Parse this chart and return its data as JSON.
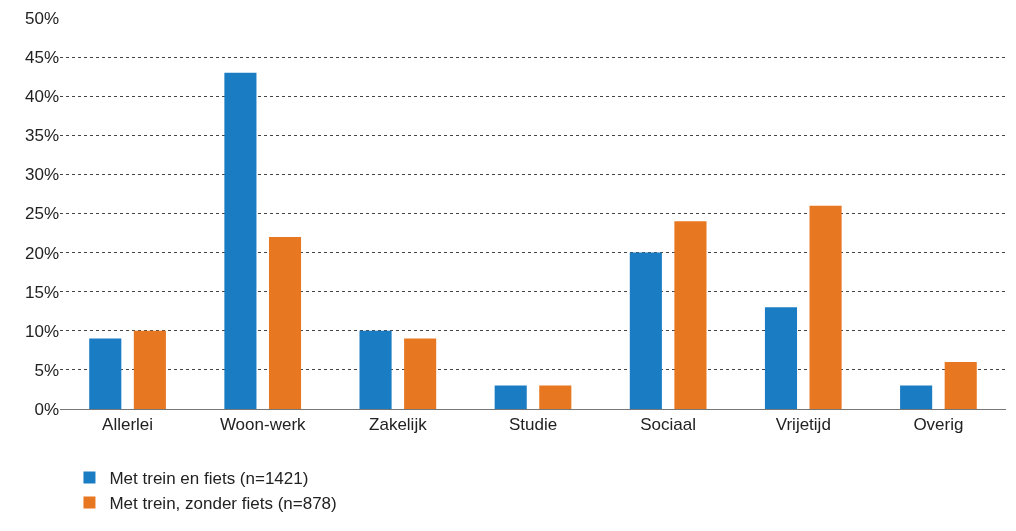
{
  "chart_data": {
    "type": "bar",
    "categories": [
      "Allerlei",
      "Woon-werk",
      "Zakelijk",
      "Studie",
      "Sociaal",
      "Vrijetijd",
      "Overig"
    ],
    "series": [
      {
        "name": "Met trein en fiets (n=1421)",
        "color": "#1a7dc4",
        "values": [
          9,
          43,
          10,
          3,
          20,
          13,
          3
        ]
      },
      {
        "name": "Met trein, zonder fiets (n=878)",
        "color": "#e87722",
        "values": [
          10,
          22,
          9,
          3,
          24,
          26,
          6
        ]
      }
    ],
    "ylim": [
      0,
      50
    ],
    "yticks": [
      {
        "value": 0,
        "label": "0%"
      },
      {
        "value": 5,
        "label": "5%"
      },
      {
        "value": 10,
        "label": "10%"
      },
      {
        "value": 15,
        "label": "15%"
      },
      {
        "value": 20,
        "label": "20%"
      },
      {
        "value": 25,
        "label": "25%"
      },
      {
        "value": 30,
        "label": "30%"
      },
      {
        "value": 35,
        "label": "35%"
      },
      {
        "value": 40,
        "label": "40%"
      },
      {
        "value": 45,
        "label": "45%"
      },
      {
        "value": 50,
        "label": "50%"
      }
    ],
    "grid": "y",
    "legend": "bottom left"
  }
}
